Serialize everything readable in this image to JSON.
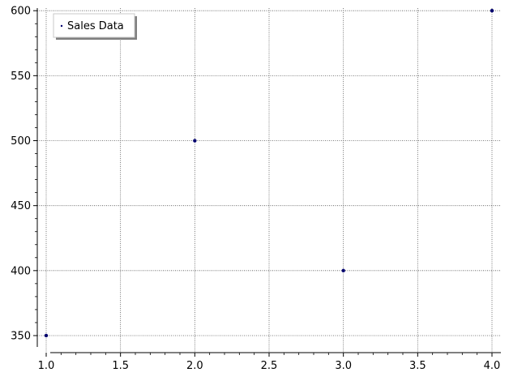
{
  "chart_data": {
    "type": "scatter",
    "title": "",
    "xlabel": "",
    "ylabel": "",
    "xlim": [
      0.94,
      4.06
    ],
    "ylim": [
      345,
      602
    ],
    "x_ticks": [
      1.0,
      1.5,
      2.0,
      2.5,
      3.0,
      3.5,
      4.0
    ],
    "x_tick_labels": [
      "1.0",
      "1.5",
      "2.0",
      "2.5",
      "3.0",
      "3.5",
      "4.0"
    ],
    "y_ticks": [
      350,
      400,
      450,
      500,
      550,
      600
    ],
    "y_tick_labels": [
      "350",
      "400",
      "450",
      "500",
      "550",
      "600"
    ],
    "grid": true,
    "legend_position": "top-left",
    "series": [
      {
        "name": "Sales Data",
        "color": "#00006e",
        "x": [
          1,
          2,
          3,
          4
        ],
        "y": [
          350,
          500,
          400,
          600
        ]
      }
    ]
  }
}
